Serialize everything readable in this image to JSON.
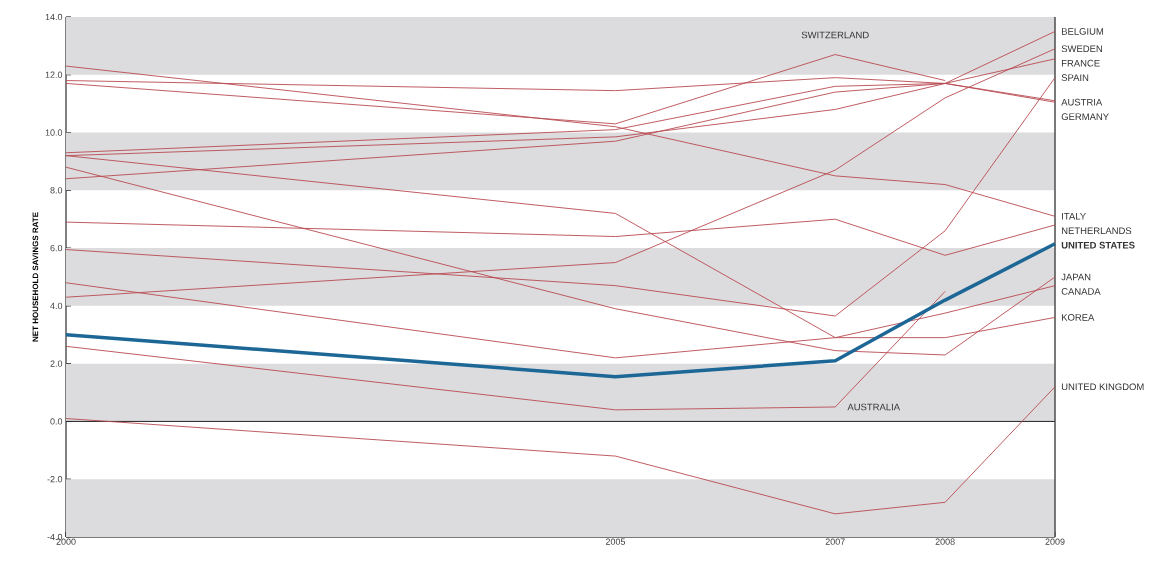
{
  "chart_data": {
    "type": "line",
    "ylabel": "NET HOUSEHOLD SAVINGS RATE",
    "x": [
      2000,
      2005,
      2007,
      2008,
      2009
    ],
    "xlim": [
      2000,
      2009
    ],
    "xticks": [
      2000,
      2005,
      2007,
      2008,
      2009
    ],
    "ylim": [
      -4,
      14
    ],
    "yticks": [
      {
        "value": -4,
        "label": "-4.0"
      },
      {
        "value": -2,
        "label": "-2.0"
      },
      {
        "value": 0,
        "label": "0.0"
      },
      {
        "value": 2,
        "label": "2.0"
      },
      {
        "value": 4,
        "label": "4.0"
      },
      {
        "value": 6,
        "label": "6.0"
      },
      {
        "value": 8,
        "label": "8.0"
      },
      {
        "value": 10,
        "label": "10.0"
      },
      {
        "value": 12,
        "label": "12.0"
      },
      {
        "value": 14,
        "label": "14.0"
      }
    ],
    "legend": false,
    "grid": false,
    "marker": "none",
    "line_style": "solid",
    "bands": [
      {
        "axis": "y",
        "from": -4,
        "to": -2,
        "color": "#dcdcde"
      },
      {
        "axis": "y",
        "from": 0,
        "to": 2,
        "color": "#dcdcde"
      },
      {
        "axis": "y",
        "from": 4,
        "to": 6,
        "color": "#dcdcde"
      },
      {
        "axis": "y",
        "from": 8,
        "to": 10,
        "color": "#dcdcde"
      },
      {
        "axis": "y",
        "from": 12,
        "to": 14,
        "color": "#dcdcde"
      }
    ],
    "ref_lines": [
      {
        "axis": "y",
        "value": 0,
        "color": "#222222"
      }
    ],
    "series": [
      {
        "name": "BELGIUM",
        "color": "#b84a50",
        "values": [
          11.8,
          11.45,
          11.9,
          11.7,
          13.5
        ]
      },
      {
        "name": "SWEDEN",
        "color": "#b84a50",
        "values": [
          4.3,
          5.5,
          8.7,
          11.2,
          12.9
        ]
      },
      {
        "name": "FRANCE",
        "color": "#b84a50",
        "values": [
          9.3,
          10.1,
          11.6,
          11.7,
          12.55
        ]
      },
      {
        "name": "SPAIN",
        "color": "#b84a50",
        "values": [
          5.95,
          4.7,
          3.65,
          6.6,
          11.9
        ]
      },
      {
        "name": "AUSTRIA",
        "color": "#b84a50",
        "values": [
          8.4,
          9.7,
          11.4,
          11.7,
          11.05
        ]
      },
      {
        "name": "GERMANY",
        "color": "#b84a50",
        "values": [
          9.2,
          9.85,
          10.8,
          11.7,
          11.1
        ]
      },
      {
        "name": "SWITZERLAND",
        "color": "#b84a50",
        "x": [
          2000,
          2005,
          2007,
          2008
        ],
        "values": [
          11.7,
          10.3,
          12.7,
          11.8
        ]
      },
      {
        "name": "ITALY",
        "color": "#b84a50",
        "values": [
          12.3,
          10.2,
          8.5,
          8.2,
          7.1
        ]
      },
      {
        "name": "NETHERLANDS",
        "color": "#b84a50",
        "values": [
          6.9,
          6.4,
          7.0,
          5.75,
          6.8
        ]
      },
      {
        "name": "UNITED STATES",
        "color": "#1d6796",
        "values": [
          3.0,
          1.55,
          2.1,
          4.2,
          6.15
        ]
      },
      {
        "name": "JAPAN",
        "color": "#b84a50",
        "values": [
          8.8,
          3.9,
          2.45,
          2.3,
          5.0
        ]
      },
      {
        "name": "CANADA",
        "color": "#b84a50",
        "values": [
          4.8,
          2.2,
          2.9,
          3.75,
          4.7
        ]
      },
      {
        "name": "KOREA",
        "color": "#b84a50",
        "values": [
          9.2,
          7.2,
          2.9,
          2.9,
          3.6
        ]
      },
      {
        "name": "AUSTRALIA",
        "color": "#b84a50",
        "x": [
          2000,
          2005,
          2007,
          2008
        ],
        "values": [
          2.6,
          0.4,
          0.5,
          4.5
        ]
      },
      {
        "name": "UNITED KINGDOM",
        "color": "#b84a50",
        "values": [
          0.1,
          -1.2,
          -3.2,
          -2.8,
          1.2
        ]
      }
    ]
  }
}
